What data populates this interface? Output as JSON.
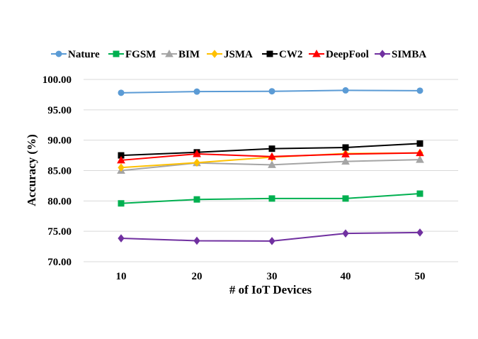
{
  "chart_data": {
    "type": "line",
    "x": [
      10,
      20,
      30,
      40,
      50
    ],
    "xlabel": "# of IoT Devices",
    "ylabel": "Accuracy (%)",
    "ylim": [
      70,
      100
    ],
    "yticks": [
      "70.00",
      "75.00",
      "80.00",
      "85.00",
      "90.00",
      "95.00",
      "100.00"
    ],
    "xticks": [
      "10",
      "20",
      "30",
      "40",
      "50"
    ],
    "grid": "horizontal",
    "legend_position": "top",
    "series": [
      {
        "name": "Nature",
        "color": "#5B9BD5",
        "marker": "circle",
        "values": [
          97.8,
          98.0,
          98.05,
          98.2,
          98.15
        ]
      },
      {
        "name": "FGSM",
        "color": "#00B050",
        "marker": "square",
        "values": [
          79.6,
          80.25,
          80.4,
          80.4,
          81.2
        ]
      },
      {
        "name": "BIM",
        "color": "#A5A5A5",
        "marker": "triangle",
        "values": [
          85.0,
          86.25,
          85.95,
          86.5,
          86.8
        ]
      },
      {
        "name": "JSMA",
        "color": "#FFC000",
        "marker": "diamond",
        "values": [
          85.5,
          86.3,
          87.2,
          87.8,
          87.9
        ]
      },
      {
        "name": "CW2",
        "color": "#000000",
        "marker": "square",
        "values": [
          87.5,
          88.0,
          88.6,
          88.8,
          89.45
        ]
      },
      {
        "name": "DeepFool",
        "color": "#FF0000",
        "marker": "triangle",
        "values": [
          86.7,
          87.75,
          87.3,
          87.7,
          87.9
        ]
      },
      {
        "name": "SIMBA",
        "color": "#7030A0",
        "marker": "diamond",
        "values": [
          73.85,
          73.45,
          73.4,
          74.65,
          74.8
        ]
      }
    ]
  }
}
